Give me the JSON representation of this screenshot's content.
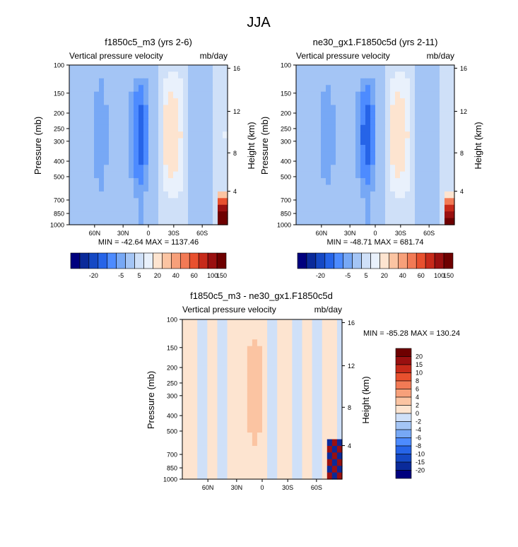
{
  "figure": {
    "title": "JJA"
  },
  "colors": {
    "main_scale": [
      "#00007e",
      "#0a2a9a",
      "#1548c4",
      "#2664e8",
      "#4d8bff",
      "#77a8f5",
      "#a4c5f5",
      "#cfe0f8",
      "#e9f1fc",
      "#fde4d0",
      "#fbc4a2",
      "#f7a07a",
      "#f27a55",
      "#e8502e",
      "#c72a1a",
      "#9a1010",
      "#6e0000"
    ],
    "diff_scale": [
      "#00007e",
      "#0a2a9a",
      "#1548c4",
      "#2664e8",
      "#4d8bff",
      "#77a8f5",
      "#a4c5f5",
      "#cfe0f8",
      "#fde4d0",
      "#fbc4a2",
      "#f7a07a",
      "#f27a55",
      "#e8502e",
      "#c72a1a",
      "#9a1010",
      "#6e0000"
    ]
  },
  "chart_data": [
    {
      "type": "heatmap",
      "title": "f1850c5_m3 (yrs 2-6)",
      "left_label": "Vertical pressure velocity",
      "right_label": "mb/day",
      "ylabel": "Pressure (mb)",
      "y2label": "Height (km)",
      "x_ticks": [
        "60N",
        "30N",
        "0",
        "30S",
        "60S"
      ],
      "y_ticks": [
        "100",
        "150",
        "200",
        "250",
        "300",
        "400",
        "500",
        "700",
        "850",
        "1000"
      ],
      "y2_ticks": [
        "16",
        "12",
        "8",
        "4"
      ],
      "stats": "MIN = -42.64   MAX = 1137.46",
      "colorbar_labels": [
        "-20",
        "-5",
        "5",
        "20",
        "40",
        "60",
        "100",
        "150"
      ],
      "profile": [
        -3,
        -4,
        -3,
        -2,
        -2,
        -6,
        -8,
        -5,
        -3,
        -2,
        -3,
        -4,
        -6,
        -12,
        -15,
        -10,
        -4,
        -1,
        3,
        6,
        8,
        7,
        5,
        2,
        -1,
        -3,
        -4,
        -3,
        -1,
        2,
        1,
        4
      ],
      "intensity": 1.0,
      "hotspot": 160
    },
    {
      "type": "heatmap",
      "title": "ne30_gx1.F1850c5d (yrs 2-11)",
      "left_label": "Vertical pressure velocity",
      "right_label": "mb/day",
      "ylabel": "Pressure (mb)",
      "y2label": "Height (km)",
      "x_ticks": [
        "60N",
        "30N",
        "0",
        "30S",
        "60S"
      ],
      "y_ticks": [
        "100",
        "150",
        "200",
        "250",
        "300",
        "400",
        "500",
        "700",
        "850",
        "1000"
      ],
      "y2_ticks": [
        "16",
        "12",
        "8",
        "4"
      ],
      "stats": "MIN = -48.71   MAX = 681.74",
      "colorbar_labels": [
        "-20",
        "-5",
        "5",
        "20",
        "40",
        "60",
        "100",
        "150"
      ],
      "profile": [
        -3,
        -4,
        -3,
        -2,
        -2,
        -6,
        -8,
        -5,
        -3,
        -2,
        -3,
        -4,
        -6,
        -13,
        -16,
        -10,
        -4,
        -1,
        3,
        6,
        8,
        7,
        5,
        2,
        -1,
        -3,
        -4,
        -3,
        -1,
        2,
        1,
        4
      ],
      "intensity": 0.95,
      "hotspot": 120
    },
    {
      "type": "heatmap",
      "title": "f1850c5_m3 - ne30_gx1.F1850c5d",
      "left_label": "Vertical pressure velocity",
      "right_label": "mb/day",
      "ylabel": "Pressure (mb)",
      "y2label": "Height (km)",
      "x_ticks": [
        "60N",
        "30N",
        "0",
        "30S",
        "60S"
      ],
      "y_ticks": [
        "100",
        "150",
        "200",
        "250",
        "300",
        "400",
        "500",
        "700",
        "850",
        "1000"
      ],
      "y2_ticks": [
        "16",
        "12",
        "8",
        "4"
      ],
      "stats": "MIN = -85.28  MAX = 130.24",
      "colorbar_labels": [
        "20",
        "15",
        "10",
        "8",
        "6",
        "4",
        "2",
        "0",
        "-2",
        "-4",
        "-6",
        "-8",
        "-10",
        "-15",
        "-20"
      ],
      "profile": [
        0.5,
        0.5,
        0,
        -0.5,
        -0.5,
        0.5,
        0.5,
        -0.5,
        -0.5,
        0.5,
        0.5,
        0,
        1,
        1.5,
        2,
        1.5,
        0.5,
        -0.5,
        -0.5,
        0.5,
        1,
        0.5,
        -0.5,
        -0.5,
        0.5,
        0.5,
        -0.5,
        -0.5,
        0,
        0,
        0.5,
        -0.5
      ]
    }
  ]
}
